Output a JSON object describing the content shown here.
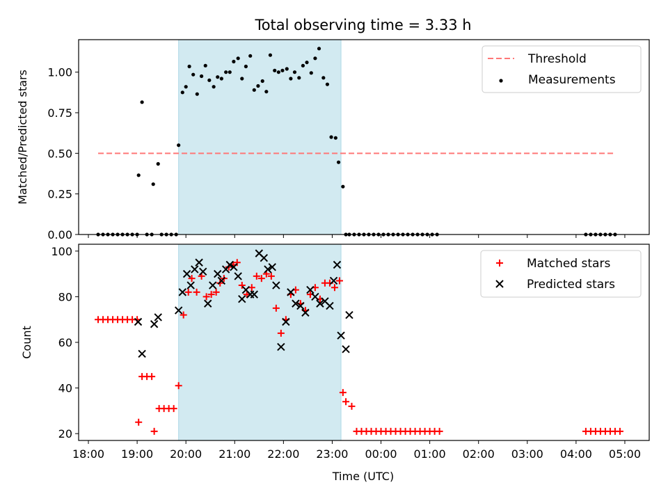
{
  "chart_data": [
    {
      "type": "scatter",
      "title": "Total observing time = 3.33 h",
      "xlabel": "",
      "ylabel": "Matched/Predicted stars",
      "ylim": [
        0,
        1.2
      ],
      "yticks": [
        "0.00",
        "0.25",
        "0.50",
        "0.75",
        "1.00"
      ],
      "ytick_values": [
        0,
        0.25,
        0.5,
        0.75,
        1.0
      ],
      "xlim_hours": [
        17.8,
        29.5
      ],
      "xticks": [
        "18:00",
        "19:00",
        "20:00",
        "21:00",
        "22:00",
        "23:00",
        "00:00",
        "01:00",
        "02:00",
        "03:00",
        "04:00",
        "05:00"
      ],
      "highlight_span_hours": [
        19.85,
        23.18
      ],
      "highlight_color": "#add8e6",
      "threshold": {
        "label": "Threshold",
        "value": 0.5,
        "x_range_hours": [
          18.2,
          28.8
        ],
        "color": "#ff7777"
      },
      "legend": {
        "placement": "top-right",
        "entries": [
          "Threshold",
          "Measurements"
        ]
      },
      "series": [
        {
          "name": "Measurements",
          "color": "#000000",
          "x": [
            18.2,
            18.3,
            18.4,
            18.5,
            18.6,
            18.7,
            18.8,
            18.9,
            19.0,
            19.03,
            19.1,
            19.2,
            19.3,
            19.33,
            19.43,
            19.5,
            19.6,
            19.7,
            19.8,
            19.85,
            19.93,
            20.0,
            20.07,
            20.15,
            20.23,
            20.32,
            20.4,
            20.48,
            20.57,
            20.65,
            20.73,
            20.82,
            20.9,
            20.98,
            21.07,
            21.15,
            21.23,
            21.32,
            21.4,
            21.48,
            21.57,
            21.65,
            21.73,
            21.82,
            21.9,
            21.98,
            22.07,
            22.15,
            22.23,
            22.32,
            22.4,
            22.48,
            22.57,
            22.65,
            22.73,
            22.82,
            22.9,
            22.98,
            23.07,
            23.13,
            23.22,
            23.28,
            23.35,
            23.45,
            23.55,
            23.65,
            23.75,
            23.85,
            23.95,
            24.05,
            24.15,
            24.25,
            24.35,
            24.45,
            24.55,
            24.65,
            24.75,
            24.85,
            24.95,
            25.05,
            25.15,
            28.2,
            28.3,
            28.4,
            28.5,
            28.6,
            28.7,
            28.8
          ],
          "y": [
            0,
            0,
            0,
            0,
            0,
            0,
            0,
            0,
            0,
            0.365,
            0.815,
            0,
            0,
            0.31,
            0.435,
            0,
            0,
            0,
            0,
            0.55,
            0.875,
            0.91,
            1.035,
            0.985,
            0.865,
            0.975,
            1.04,
            0.95,
            0.91,
            0.97,
            0.96,
            1.0,
            1.0,
            1.065,
            1.085,
            0.96,
            1.035,
            1.1,
            0.89,
            0.915,
            0.945,
            0.88,
            1.105,
            1.01,
            1.0,
            1.01,
            1.02,
            0.96,
            1.0,
            0.965,
            1.04,
            1.06,
            0.995,
            1.085,
            1.145,
            0.965,
            0.925,
            0.6,
            0.595,
            0.445,
            0.295,
            0,
            0,
            0,
            0,
            0,
            0,
            0,
            0,
            0,
            0,
            0,
            0,
            0,
            0,
            0,
            0,
            0,
            0,
            0,
            0,
            0,
            0,
            0,
            0,
            0,
            0,
            0
          ]
        }
      ]
    },
    {
      "type": "scatter",
      "title": "",
      "xlabel": "Time (UTC)",
      "ylabel": "Count",
      "ylim": [
        17,
        103
      ],
      "yticks": [
        "20",
        "40",
        "60",
        "80",
        "100"
      ],
      "ytick_values": [
        20,
        40,
        60,
        80,
        100
      ],
      "xlim_hours": [
        17.8,
        29.5
      ],
      "xticks": [
        "18:00",
        "19:00",
        "20:00",
        "21:00",
        "22:00",
        "23:00",
        "00:00",
        "01:00",
        "02:00",
        "03:00",
        "04:00",
        "05:00"
      ],
      "highlight_span_hours": [
        19.85,
        23.18
      ],
      "highlight_color": "#add8e6",
      "legend": {
        "placement": "top-right",
        "entries": [
          "Matched stars",
          "Predicted stars"
        ]
      },
      "series": [
        {
          "name": "Matched stars",
          "color": "#ff0000",
          "marker": "plus",
          "x": [
            18.2,
            18.3,
            18.4,
            18.5,
            18.6,
            18.7,
            18.8,
            18.9,
            19.0,
            19.03,
            19.1,
            19.2,
            19.3,
            19.35,
            19.45,
            19.55,
            19.65,
            19.75,
            19.85,
            19.95,
            20.05,
            20.12,
            20.22,
            20.32,
            20.42,
            20.52,
            20.62,
            20.7,
            20.78,
            20.88,
            20.97,
            21.05,
            21.15,
            21.25,
            21.35,
            21.45,
            21.55,
            21.65,
            21.75,
            21.85,
            21.95,
            22.05,
            22.15,
            22.25,
            22.35,
            22.45,
            22.55,
            22.65,
            22.75,
            22.85,
            22.95,
            23.05,
            23.15,
            23.22,
            23.28,
            23.4,
            23.5,
            23.6,
            23.7,
            23.8,
            23.9,
            24.0,
            24.1,
            24.2,
            24.3,
            24.4,
            24.5,
            24.6,
            24.7,
            24.8,
            24.9,
            25.0,
            25.1,
            25.2,
            28.2,
            28.3,
            28.4,
            28.5,
            28.6,
            28.7,
            28.8,
            28.9
          ],
          "y": [
            70,
            70,
            70,
            70,
            70,
            70,
            70,
            70,
            70,
            25,
            45,
            45,
            45,
            21,
            31,
            31,
            31,
            31,
            41,
            72,
            82,
            88,
            82,
            89,
            80,
            81,
            82,
            86,
            88,
            93,
            94,
            95,
            85,
            81,
            84,
            89,
            88,
            90,
            89,
            75,
            64,
            70,
            81,
            83,
            77,
            74,
            81,
            84,
            79,
            86,
            86,
            84,
            87,
            38,
            34,
            32,
            21,
            21,
            21,
            21,
            21,
            21,
            21,
            21,
            21,
            21,
            21,
            21,
            21,
            21,
            21,
            21,
            21,
            21,
            21,
            21,
            21,
            21,
            21,
            21,
            21,
            21
          ]
        },
        {
          "name": "Predicted stars",
          "color": "#000000",
          "marker": "x",
          "x": [
            19.02,
            19.1,
            19.35,
            19.43,
            19.85,
            19.93,
            20.02,
            20.1,
            20.18,
            20.27,
            20.35,
            20.45,
            20.55,
            20.65,
            20.73,
            20.82,
            20.9,
            20.98,
            21.07,
            21.15,
            21.23,
            21.32,
            21.4,
            21.5,
            21.6,
            21.68,
            21.77,
            21.85,
            21.95,
            22.05,
            22.15,
            22.25,
            22.35,
            22.45,
            22.55,
            22.65,
            22.75,
            22.85,
            22.95,
            23.03,
            23.1,
            23.18,
            23.28,
            23.35
          ],
          "y": [
            69,
            55,
            68,
            71,
            74,
            82,
            90,
            85,
            92,
            95,
            91,
            77,
            85,
            90,
            87,
            92,
            94,
            93,
            89,
            79,
            83,
            81,
            81,
            99,
            97,
            92,
            93,
            85,
            58,
            69,
            82,
            77,
            76,
            73,
            83,
            80,
            77,
            78,
            76,
            87,
            94,
            63,
            57,
            72
          ]
        }
      ]
    }
  ]
}
